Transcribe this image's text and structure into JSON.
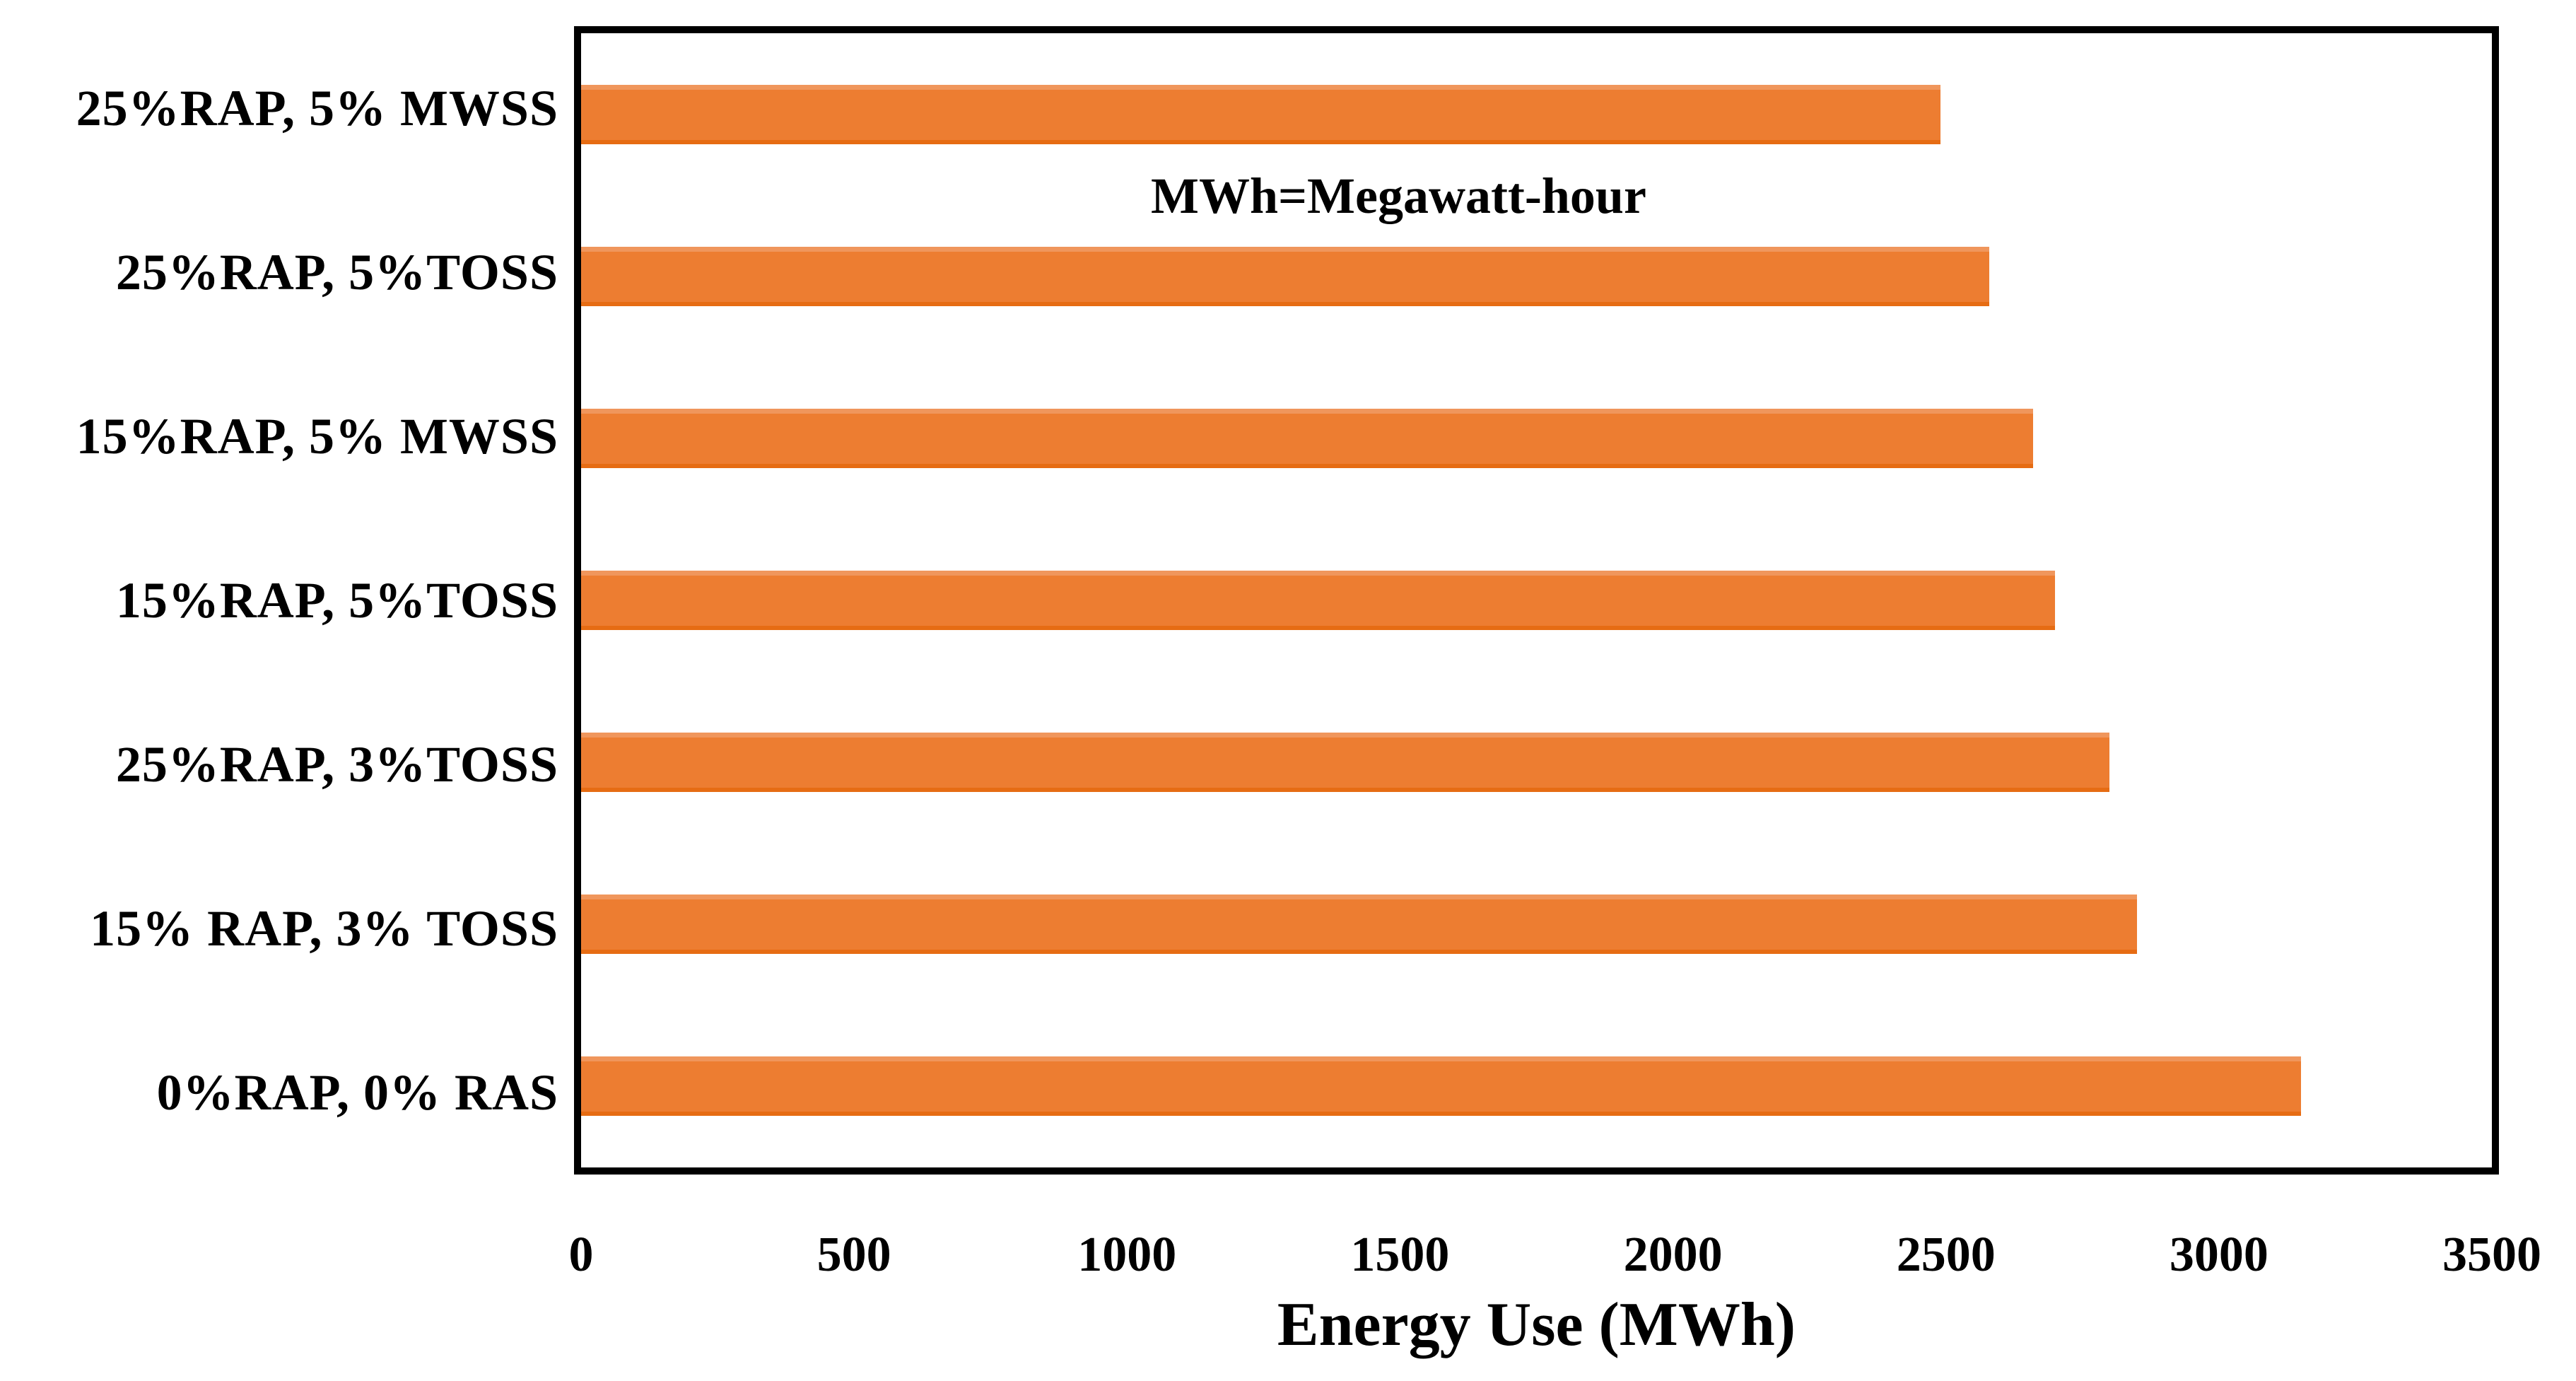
{
  "chart_data": {
    "type": "bar",
    "orientation": "horizontal",
    "categories": [
      "25%RAP, 5% MWSS",
      "25%RAP, 5%TOSS",
      "15%RAP, 5% MWSS",
      "15%RAP, 5%TOSS",
      "25%RAP, 3%TOSS",
      "15% RAP, 3% TOSS",
      "0%RAP, 0% RAS"
    ],
    "values": [
      2490,
      2580,
      2660,
      2700,
      2800,
      2850,
      3150
    ],
    "xlabel": "Energy Use (MWh)",
    "ylabel": "",
    "xlim": [
      0,
      3500
    ],
    "xticks": [
      0,
      500,
      1000,
      1500,
      2000,
      2500,
      3000,
      3500
    ],
    "annotation": "MWh=Megawatt-hour",
    "grid": false,
    "legend": false,
    "layout": {
      "bar_direction": "left-to-right",
      "category_order_top_to_bottom": true
    },
    "colors": {
      "bar_fill": "#ED7D31",
      "bar_edge_light": "#F0965C",
      "bar_edge_dark": "#E66C13",
      "frame": "#000000",
      "background": "#FFFFFF",
      "text": "#000000"
    }
  }
}
